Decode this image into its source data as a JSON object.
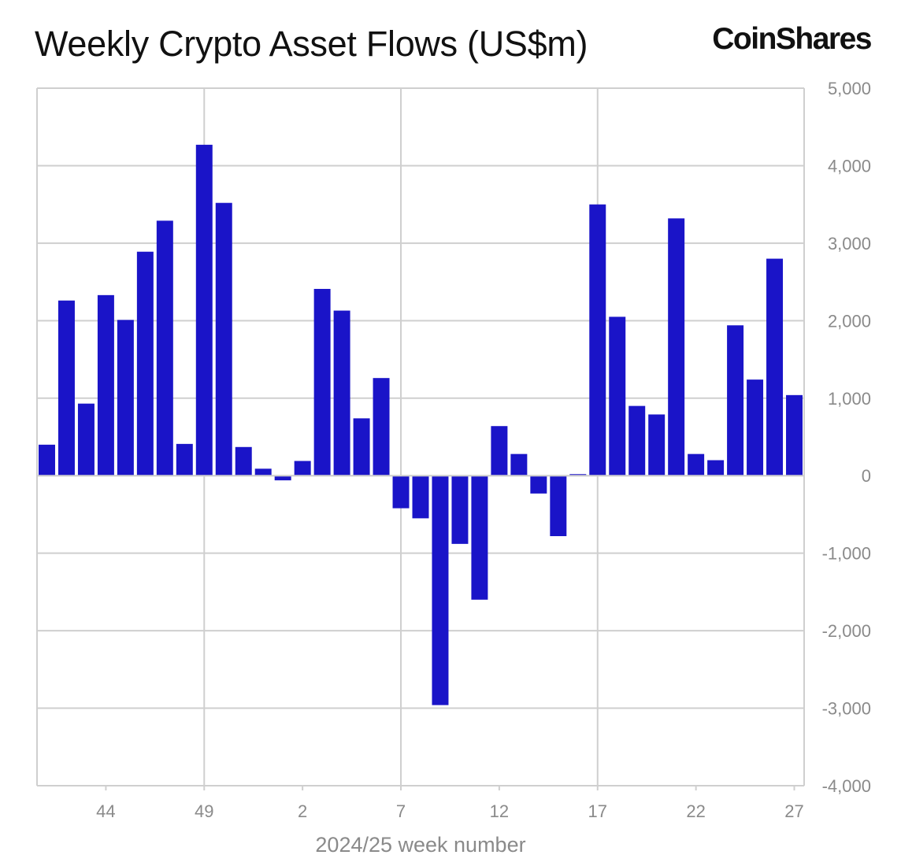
{
  "title": "Weekly Crypto Asset Flows (US$m)",
  "logo_text": "CoinShares",
  "colors": {
    "bar": "#1a14c8",
    "grid": "#cfcfcf",
    "axis_text": "#8a8a8a",
    "title": "#111111"
  },
  "chart_data": {
    "type": "bar",
    "title": "Weekly Crypto Asset Flows (US$m)",
    "xlabel": "2024/25 week number",
    "ylabel": "",
    "y_axis_side": "right",
    "ylim": [
      -4000,
      5000
    ],
    "yticks": [
      5000,
      4000,
      3000,
      2000,
      1000,
      0,
      -1000,
      -2000,
      -3000,
      -4000
    ],
    "ytick_labels": [
      "5,000",
      "4,000",
      "3,000",
      "2,000",
      "1,000",
      "0",
      "-1,000",
      "-2,000",
      "-3,000",
      "-4,000"
    ],
    "xtick_labels": [
      "44",
      "49",
      "2",
      "7",
      "12",
      "17",
      "22",
      "27"
    ],
    "xtick_indices": [
      3,
      8,
      13,
      18,
      23,
      28,
      33,
      38
    ],
    "vertical_grid_indices": [
      8,
      18,
      28
    ],
    "grid": true,
    "categories": [
      "41",
      "42",
      "43",
      "44",
      "45",
      "46",
      "47",
      "48",
      "49",
      "50",
      "51",
      "52",
      "1",
      "2",
      "3",
      "4",
      "5",
      "6",
      "7",
      "8",
      "9",
      "10",
      "11",
      "12",
      "13",
      "14",
      "15",
      "16",
      "17",
      "18",
      "19",
      "20",
      "21",
      "22",
      "23",
      "24",
      "25",
      "26",
      "27"
    ],
    "values": [
      400,
      2260,
      930,
      2330,
      2010,
      2890,
      3290,
      410,
      4270,
      3520,
      370,
      90,
      -60,
      190,
      2410,
      2130,
      740,
      1260,
      -420,
      -550,
      -2960,
      -880,
      -1600,
      640,
      280,
      -230,
      -780,
      20,
      3500,
      2050,
      900,
      790,
      3320,
      280,
      200,
      1940,
      1240,
      2800,
      1040
    ]
  }
}
